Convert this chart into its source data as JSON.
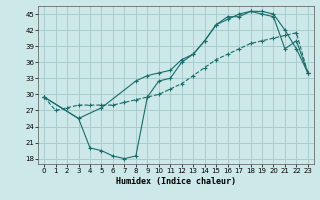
{
  "xlabel": "Humidex (Indice chaleur)",
  "background_color": "#cce8e8",
  "grid_color": "#aacccc",
  "line_color": "#1a6b6b",
  "xlim": [
    -0.5,
    23.5
  ],
  "ylim": [
    17,
    46.5
  ],
  "yticks": [
    18,
    21,
    24,
    27,
    30,
    33,
    36,
    39,
    42,
    45
  ],
  "xticks": [
    0,
    1,
    2,
    3,
    4,
    5,
    6,
    7,
    8,
    9,
    10,
    11,
    12,
    13,
    14,
    15,
    16,
    17,
    18,
    19,
    20,
    21,
    22,
    23
  ],
  "line1_x": [
    0,
    1,
    2,
    3,
    4,
    5,
    6,
    7,
    8,
    9,
    10,
    11,
    12,
    13,
    14,
    15,
    16,
    17,
    18,
    19,
    20,
    21,
    22,
    23
  ],
  "line1_y": [
    29.5,
    27,
    27.5,
    28,
    28,
    28,
    28,
    28.5,
    29,
    29.5,
    30,
    31,
    32,
    33.5,
    35,
    36.5,
    37.5,
    38.5,
    39.5,
    40,
    40.5,
    41,
    41.5,
    34
  ],
  "line2_x": [
    0,
    3,
    4,
    5,
    6,
    7,
    8,
    9,
    10,
    11,
    12,
    13,
    14,
    15,
    16,
    17,
    18,
    19,
    20,
    21,
    22,
    23
  ],
  "line2_y": [
    29.5,
    25.5,
    20.0,
    19.5,
    18.5,
    18.0,
    18.5,
    29.5,
    32.5,
    33,
    36,
    37.5,
    40,
    43,
    44.5,
    44.5,
    45.5,
    45.0,
    44.5,
    38.5,
    40.0,
    34
  ],
  "line3_x": [
    0,
    3,
    5,
    8,
    9,
    10,
    11,
    12,
    13,
    14,
    15,
    16,
    17,
    18,
    19,
    20,
    21,
    22,
    23
  ],
  "line3_y": [
    29.5,
    25.5,
    27.5,
    32.5,
    33.5,
    34,
    34.5,
    36.5,
    37.5,
    40,
    43,
    44,
    45,
    45.5,
    45.5,
    45,
    42,
    38.5,
    34
  ]
}
